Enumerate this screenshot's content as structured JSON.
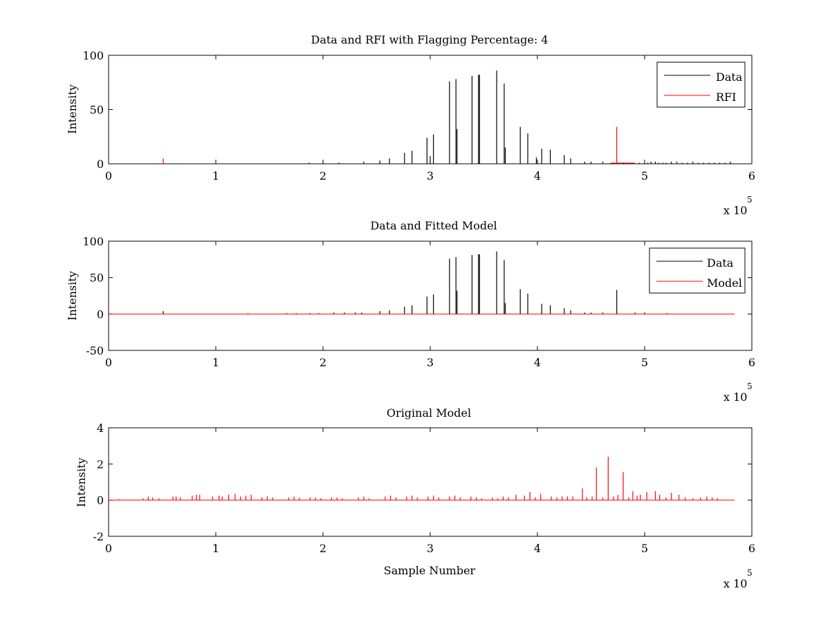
{
  "chart_data": [
    {
      "type": "line",
      "title": "Data and RFI with Flagging Percentage: 4",
      "xlabel": "",
      "ylabel": "Intensity",
      "xlim": [
        0,
        600000
      ],
      "ylim": [
        0,
        100
      ],
      "xticks": [
        0,
        1,
        2,
        3,
        4,
        5,
        6
      ],
      "yticks": [
        0,
        50,
        100
      ],
      "x_multiplier_label": "x 10",
      "x_multiplier_exp": "5",
      "grid": false,
      "legend": {
        "position": "top-right",
        "entries": [
          {
            "label": "Data",
            "color": "#000000"
          },
          {
            "label": "RFI",
            "color": "#ff0000"
          }
        ]
      },
      "baseline_end": 584000,
      "series": [
        {
          "name": "Data",
          "color": "#000000",
          "x": [
            187000,
            200000,
            215000,
            238000,
            253000,
            262000,
            276000,
            283000,
            297000,
            300000,
            303000,
            318000,
            324000,
            325000,
            339000,
            345000,
            346000,
            362000,
            369000,
            370000,
            384000,
            391000,
            399000,
            404000,
            412000,
            425000,
            431000,
            444000,
            450000,
            461000,
            480000,
            484000,
            490000,
            495000,
            500000,
            503000,
            506000,
            510000,
            513000,
            517000,
            520000,
            525000,
            530000,
            535000,
            540000,
            545000,
            550000,
            555000,
            560000,
            565000,
            570000,
            575000,
            580000
          ],
          "values": [
            1,
            2,
            1,
            2,
            3,
            5,
            10,
            12,
            24,
            7,
            27,
            76,
            78,
            32,
            81,
            82,
            82,
            86,
            74,
            15,
            34,
            28,
            6,
            14,
            13,
            8,
            5,
            2,
            2,
            2,
            1,
            1,
            1,
            1,
            1,
            1,
            2,
            2,
            1,
            1,
            1,
            2,
            2,
            1,
            1,
            2,
            1,
            1,
            1,
            1,
            1,
            1,
            2
          ]
        },
        {
          "name": "RFI",
          "color": "#ff0000",
          "x": [
            51000,
            474000,
            478000,
            484000
          ],
          "values": [
            5,
            34,
            1,
            1
          ]
        }
      ]
    },
    {
      "type": "line",
      "title": "Data and Fitted Model",
      "xlabel": "",
      "ylabel": "Intensity",
      "xlim": [
        0,
        600000
      ],
      "ylim": [
        -50,
        100
      ],
      "xticks": [
        0,
        1,
        2,
        3,
        4,
        5,
        6
      ],
      "yticks": [
        -50,
        0,
        50,
        100
      ],
      "x_multiplier_label": "x 10",
      "x_multiplier_exp": "5",
      "grid": false,
      "legend": {
        "position": "top-right",
        "entries": [
          {
            "label": "Data",
            "color": "#000000"
          },
          {
            "label": "Model",
            "color": "#ff0000"
          }
        ]
      },
      "baseline_end": 584000,
      "series": [
        {
          "name": "Data",
          "color": "#000000",
          "x": [
            51000,
            130000,
            166000,
            175000,
            188000,
            196000,
            210000,
            220000,
            230000,
            236000,
            253000,
            262000,
            276000,
            283000,
            297000,
            303000,
            318000,
            324000,
            325000,
            339000,
            345000,
            346000,
            362000,
            369000,
            370000,
            384000,
            391000,
            404000,
            412000,
            425000,
            431000,
            444000,
            450000,
            461000,
            474000,
            491000,
            500000,
            521000
          ],
          "values": [
            4,
            1,
            1,
            1,
            1,
            1,
            2,
            2,
            2,
            2,
            4,
            5,
            10,
            12,
            24,
            27,
            76,
            78,
            32,
            81,
            82,
            82,
            86,
            74,
            15,
            34,
            28,
            14,
            12,
            8,
            5,
            2,
            2,
            2,
            33,
            2,
            2,
            1
          ]
        },
        {
          "name": "Model",
          "color": "#ff0000",
          "x": [],
          "values": []
        }
      ]
    },
    {
      "type": "line",
      "title": "Original Model",
      "xlabel": "Sample Number",
      "ylabel": "Intensity",
      "xlim": [
        0,
        600000
      ],
      "ylim": [
        -2,
        4
      ],
      "xticks": [
        0,
        1,
        2,
        3,
        4,
        5,
        6
      ],
      "yticks": [
        -2,
        0,
        2,
        4
      ],
      "x_multiplier_label": "x 10",
      "x_multiplier_exp": "5",
      "grid": false,
      "legend": null,
      "baseline_end": 584000,
      "series": [
        {
          "name": "",
          "color": "#ff0000",
          "x": [
            10000,
            32000,
            37000,
            41000,
            47000,
            60000,
            63000,
            67000,
            78000,
            82000,
            85000,
            97000,
            103000,
            106000,
            112000,
            118000,
            123000,
            128000,
            133000,
            143000,
            148000,
            153000,
            168000,
            173000,
            178000,
            188000,
            193000,
            198000,
            208000,
            213000,
            218000,
            233000,
            238000,
            243000,
            258000,
            263000,
            268000,
            278000,
            283000,
            288000,
            298000,
            303000,
            308000,
            318000,
            323000,
            328000,
            338000,
            343000,
            348000,
            358000,
            363000,
            368000,
            373000,
            380000,
            388000,
            393000,
            398000,
            403000,
            413000,
            418000,
            423000,
            428000,
            433000,
            442000,
            446000,
            451000,
            455000,
            461000,
            466000,
            471000,
            475000,
            480000,
            485000,
            489000,
            493000,
            496000,
            502000,
            510000,
            514000,
            520000,
            525000,
            532000,
            538000,
            545000,
            552000,
            558000,
            563000,
            568000
          ],
          "values": [
            0.05,
            0.1,
            0.2,
            0.15,
            0.1,
            0.2,
            0.2,
            0.15,
            0.25,
            0.3,
            0.3,
            0.2,
            0.25,
            0.2,
            0.3,
            0.35,
            0.2,
            0.25,
            0.3,
            0.15,
            0.2,
            0.15,
            0.15,
            0.2,
            0.15,
            0.15,
            0.15,
            0.1,
            0.15,
            0.15,
            0.1,
            0.15,
            0.2,
            0.1,
            0.2,
            0.25,
            0.15,
            0.2,
            0.25,
            0.15,
            0.2,
            0.25,
            0.15,
            0.2,
            0.25,
            0.15,
            0.2,
            0.15,
            0.1,
            0.15,
            0.1,
            0.2,
            0.15,
            0.3,
            0.25,
            0.45,
            0.15,
            0.35,
            0.2,
            0.15,
            0.2,
            0.2,
            0.2,
            0.65,
            0.15,
            0.2,
            1.8,
            0.15,
            2.4,
            0.2,
            0.3,
            1.55,
            0.15,
            0.5,
            0.25,
            0.3,
            0.45,
            0.5,
            0.3,
            0.15,
            0.4,
            0.3,
            0.15,
            0.1,
            0.15,
            0.2,
            0.15,
            0.1
          ]
        }
      ]
    }
  ]
}
